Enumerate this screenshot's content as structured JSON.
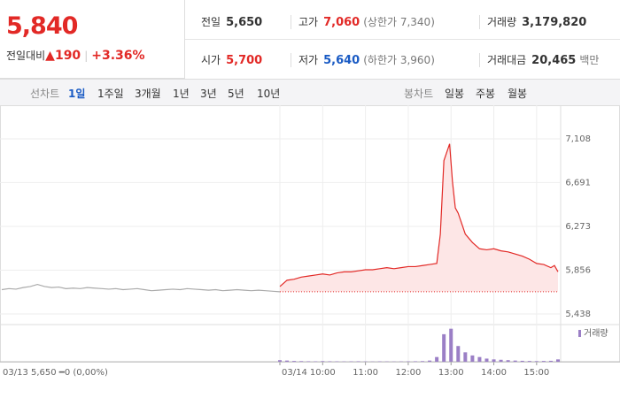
{
  "quote": {
    "price": "5,840",
    "change_label": "전일대비",
    "change": "190",
    "rate": "+3.36%"
  },
  "stats": [
    [
      {
        "label": "전일",
        "value": "5,650"
      },
      {
        "label": "고가",
        "value": "7,060",
        "extra": "(상한가 7,340)"
      },
      {
        "label": "거래량",
        "value": "3,179,820"
      }
    ],
    [
      {
        "label": "시가",
        "value": "5,700"
      },
      {
        "label": "저가",
        "value": "5,640",
        "extra": "(하한가 3,960)"
      },
      {
        "label": "거래대금",
        "value": "20,465",
        "extra": "백만"
      }
    ]
  ],
  "tabs": {
    "line_label": "선차트",
    "line": [
      "1일",
      "1주일",
      "3개월",
      "1년",
      "3년",
      "5년",
      "10년"
    ],
    "candle_label": "봉차트",
    "candle": [
      "일봉",
      "주봉",
      "월봉"
    ]
  },
  "chart_data": {
    "type": "line",
    "prev_day_label": "03/13  5,650  ━0 (0,00%)",
    "prev_close": 5650,
    "xlim": [
      0,
      780
    ],
    "xticks": [
      {
        "value": 390,
        "label": "03/14"
      },
      {
        "value": 450,
        "label": "10:00"
      },
      {
        "value": 510,
        "label": "11:00"
      },
      {
        "value": 570,
        "label": "12:00"
      },
      {
        "value": 630,
        "label": "13:00"
      },
      {
        "value": 690,
        "label": "14:00"
      },
      {
        "value": 750,
        "label": "15:00"
      }
    ],
    "ylim": [
      5354,
      7251
    ],
    "yticks": [
      {
        "value": 7108,
        "label": "7,108"
      },
      {
        "value": 6691,
        "label": "6,691"
      },
      {
        "value": 6273,
        "label": "6,273"
      },
      {
        "value": 5856,
        "label": "5,856"
      },
      {
        "value": 5438,
        "label": "5,438"
      }
    ],
    "grid": true,
    "series": [
      {
        "color": "#aaaaaa",
        "fill": false,
        "x": [
          0,
          10,
          20,
          30,
          40,
          50,
          60,
          70,
          80,
          90,
          100,
          110,
          120,
          130,
          140,
          150,
          160,
          170,
          180,
          190,
          200,
          210,
          220,
          230,
          240,
          250,
          260,
          270,
          280,
          290,
          300,
          310,
          320,
          330,
          340,
          350,
          360,
          370,
          380,
          390
        ],
        "values": [
          5670,
          5680,
          5675,
          5690,
          5700,
          5720,
          5700,
          5690,
          5695,
          5680,
          5685,
          5680,
          5690,
          5685,
          5680,
          5675,
          5680,
          5670,
          5675,
          5680,
          5670,
          5660,
          5665,
          5670,
          5675,
          5670,
          5680,
          5675,
          5670,
          5665,
          5670,
          5660,
          5665,
          5670,
          5665,
          5660,
          5665,
          5660,
          5655,
          5650
        ]
      },
      {
        "color": "#e22926",
        "fill": true,
        "x": [
          390,
          400,
          410,
          420,
          430,
          440,
          450,
          460,
          470,
          480,
          490,
          500,
          510,
          520,
          530,
          540,
          550,
          560,
          570,
          580,
          590,
          600,
          610,
          615,
          620,
          625,
          628,
          632,
          636,
          640,
          650,
          660,
          670,
          680,
          690,
          700,
          710,
          720,
          730,
          740,
          750,
          760,
          770,
          775,
          780
        ],
        "values": [
          5700,
          5760,
          5770,
          5790,
          5800,
          5810,
          5820,
          5810,
          5830,
          5840,
          5840,
          5850,
          5860,
          5860,
          5870,
          5880,
          5870,
          5880,
          5890,
          5890,
          5900,
          5910,
          5920,
          6200,
          6900,
          7000,
          7060,
          6700,
          6450,
          6400,
          6200,
          6120,
          6060,
          6050,
          6060,
          6040,
          6030,
          6010,
          5990,
          5960,
          5920,
          5910,
          5880,
          5900,
          5840
        ]
      }
    ],
    "volume": {
      "name": "거래량",
      "color": "#9b7fc6",
      "vlim": [
        0,
        450000
      ],
      "x": [
        390,
        400,
        410,
        420,
        430,
        440,
        450,
        460,
        470,
        480,
        490,
        500,
        510,
        520,
        530,
        540,
        550,
        560,
        570,
        580,
        590,
        600,
        610,
        620,
        630,
        640,
        650,
        660,
        670,
        680,
        690,
        700,
        710,
        720,
        730,
        740,
        750,
        760,
        770,
        780
      ],
      "values": [
        20000,
        15000,
        10000,
        8000,
        6000,
        5000,
        8000,
        6000,
        5000,
        4000,
        5000,
        6000,
        4000,
        3000,
        5000,
        4000,
        3000,
        4000,
        5000,
        6000,
        8000,
        15000,
        60000,
        350000,
        420000,
        200000,
        120000,
        80000,
        60000,
        40000,
        30000,
        25000,
        20000,
        15000,
        12000,
        10000,
        8000,
        10000,
        12000,
        30000
      ]
    }
  }
}
